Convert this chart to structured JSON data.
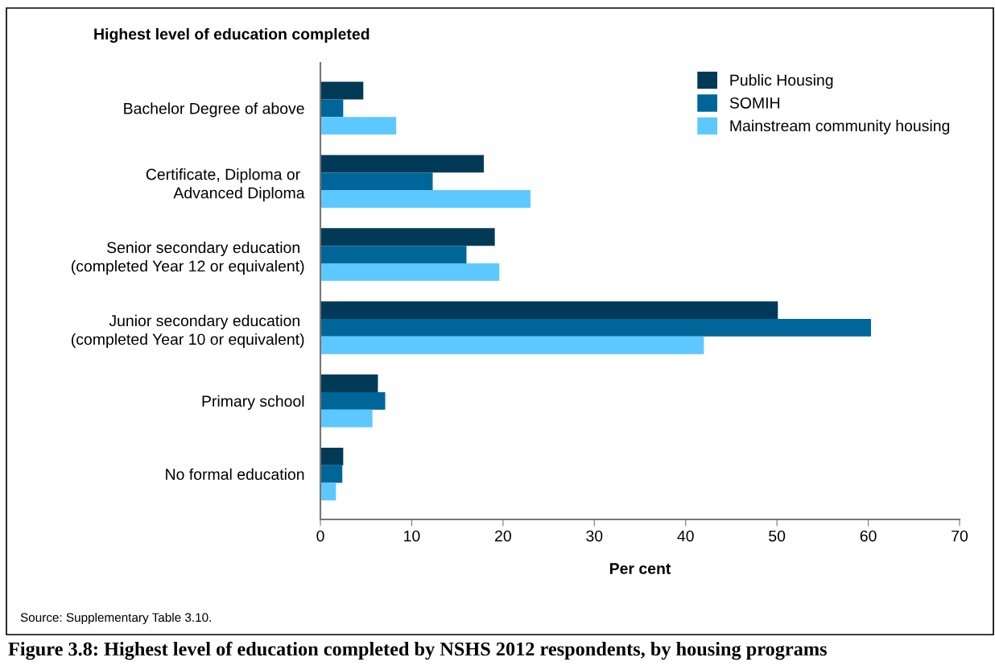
{
  "chart_data": {
    "type": "bar",
    "orientation": "horizontal",
    "title": "Figure 3.8: Highest level of education completed by NSHS 2012 respondents, by housing programs",
    "ylabel": "Highest level of education completed",
    "xlabel": "Per cent",
    "annotations": [
      "Source: Supplementary Table 3.10."
    ],
    "categories": [
      "Bachelor Degree of above",
      "Certificate, Diploma or \nAdvanced Diploma",
      "Senior secondary education \n(completed Year 12 or equivalent)",
      "Junior secondary education \n(completed Year 10 or equivalent)",
      "Primary school",
      "No formal education"
    ],
    "series": [
      {
        "name": "Public Housing",
        "color": "#003a57",
        "values": [
          4.7,
          17.9,
          19.1,
          50.1,
          6.3,
          2.5
        ]
      },
      {
        "name": "SOMIH",
        "color": "#006699",
        "values": [
          2.5,
          12.3,
          16.0,
          60.3,
          7.1,
          2.4
        ]
      },
      {
        "name": "Mainstream community housing",
        "color": "#5dc8ff",
        "values": [
          8.3,
          23.0,
          19.6,
          42.0,
          5.7,
          1.7
        ]
      }
    ],
    "xlim": [
      0,
      70
    ],
    "xticks": [
      0,
      10,
      20,
      30,
      40,
      50,
      60,
      70
    ],
    "grid": false,
    "legend": "top right"
  }
}
